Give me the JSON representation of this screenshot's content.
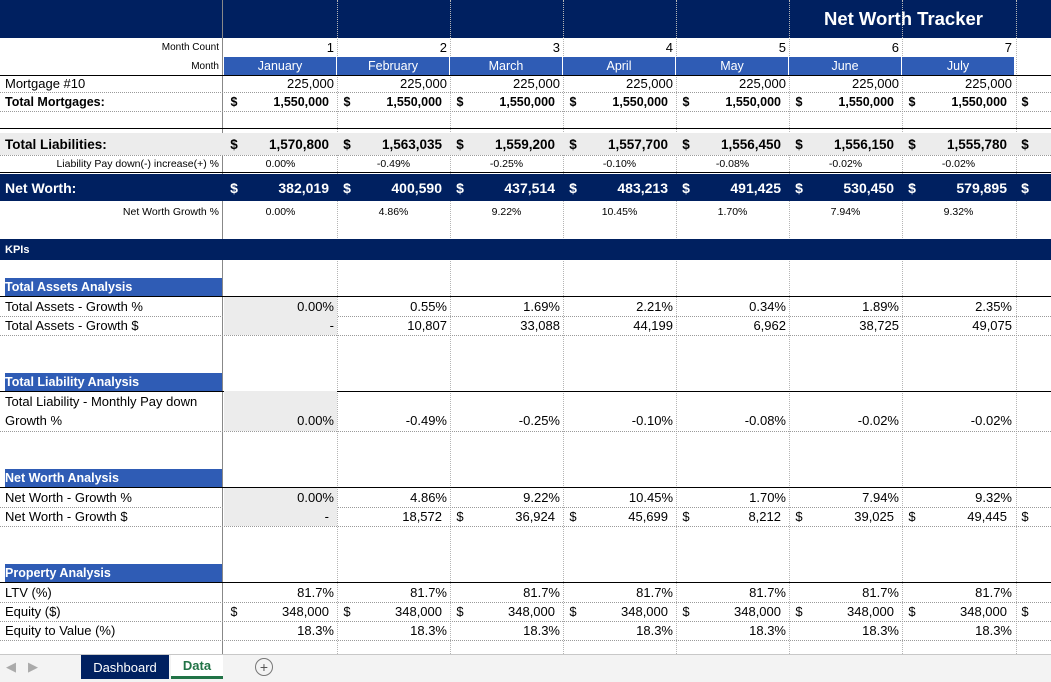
{
  "title": "Net Worth Tracker",
  "months": [
    {
      "count": "1",
      "name": "January",
      "mortgage": "225,000",
      "total_mortgages": "1,550,000",
      "total_liabilities": "1,570,800",
      "liab_paydown": "0.00%",
      "net_worth": "382,019",
      "nw_growth": "0.00%",
      "ta_growth_pct": "0.00%",
      "ta_growth_usd": "-",
      "tl_paydown": "0.00%",
      "nw_growth_pct": "0.00%",
      "nw_growth_usd": "-",
      "ltv": "81.7%",
      "equity": "348,000",
      "etv": "18.3%"
    },
    {
      "count": "2",
      "name": "February",
      "mortgage": "225,000",
      "total_mortgages": "1,550,000",
      "total_liabilities": "1,563,035",
      "liab_paydown": "-0.49%",
      "net_worth": "400,590",
      "nw_growth": "4.86%",
      "ta_growth_pct": "0.55%",
      "ta_growth_usd": "10,807",
      "tl_paydown": "-0.49%",
      "nw_growth_pct": "4.86%",
      "nw_growth_usd": "18,572",
      "ltv": "81.7%",
      "equity": "348,000",
      "etv": "18.3%"
    },
    {
      "count": "3",
      "name": "March",
      "mortgage": "225,000",
      "total_mortgages": "1,550,000",
      "total_liabilities": "1,559,200",
      "liab_paydown": "-0.25%",
      "net_worth": "437,514",
      "nw_growth": "9.22%",
      "ta_growth_pct": "1.69%",
      "ta_growth_usd": "33,088",
      "tl_paydown": "-0.25%",
      "nw_growth_pct": "9.22%",
      "nw_growth_usd": "36,924",
      "ltv": "81.7%",
      "equity": "348,000",
      "etv": "18.3%"
    },
    {
      "count": "4",
      "name": "April",
      "mortgage": "225,000",
      "total_mortgages": "1,550,000",
      "total_liabilities": "1,557,700",
      "liab_paydown": "-0.10%",
      "net_worth": "483,213",
      "nw_growth": "10.45%",
      "ta_growth_pct": "2.21%",
      "ta_growth_usd": "44,199",
      "tl_paydown": "-0.10%",
      "nw_growth_pct": "10.45%",
      "nw_growth_usd": "45,699",
      "ltv": "81.7%",
      "equity": "348,000",
      "etv": "18.3%"
    },
    {
      "count": "5",
      "name": "May",
      "mortgage": "225,000",
      "total_mortgages": "1,550,000",
      "total_liabilities": "1,556,450",
      "liab_paydown": "-0.08%",
      "net_worth": "491,425",
      "nw_growth": "1.70%",
      "ta_growth_pct": "0.34%",
      "ta_growth_usd": "6,962",
      "tl_paydown": "-0.08%",
      "nw_growth_pct": "1.70%",
      "nw_growth_usd": "8,212",
      "ltv": "81.7%",
      "equity": "348,000",
      "etv": "18.3%"
    },
    {
      "count": "6",
      "name": "June",
      "mortgage": "225,000",
      "total_mortgages": "1,550,000",
      "total_liabilities": "1,556,150",
      "liab_paydown": "-0.02%",
      "net_worth": "530,450",
      "nw_growth": "7.94%",
      "ta_growth_pct": "1.89%",
      "ta_growth_usd": "38,725",
      "tl_paydown": "-0.02%",
      "nw_growth_pct": "7.94%",
      "nw_growth_usd": "39,025",
      "ltv": "81.7%",
      "equity": "348,000",
      "etv": "18.3%"
    },
    {
      "count": "7",
      "name": "July",
      "mortgage": "225,000",
      "total_mortgages": "1,550,000",
      "total_liabilities": "1,555,780",
      "liab_paydown": "-0.02%",
      "net_worth": "579,895",
      "nw_growth": "9.32%",
      "ta_growth_pct": "2.35%",
      "ta_growth_usd": "49,075",
      "tl_paydown": "-0.02%",
      "nw_growth_pct": "9.32%",
      "nw_growth_usd": "49,445",
      "ltv": "81.7%",
      "equity": "348,000",
      "etv": "18.3%"
    }
  ],
  "labels": {
    "month_count": "Month Count",
    "month": "Month",
    "mortgage": "Mortgage #10",
    "total_mortgages": "Total Mortgages:",
    "total_liabilities": "Total Liabilities:",
    "liab_paydown": "Liability Pay down(-) increase(+) %",
    "net_worth": "Net Worth:",
    "nw_growth": "Net Worth Growth %",
    "kpis": "KPIs",
    "ta_analysis": "Total Assets Analysis",
    "ta_growth_pct": "Total Assets - Growth %",
    "ta_growth_usd": "Total Assets - Growth $",
    "tl_analysis": "Total Liability Analysis",
    "tl_paydown_1": "Total Liability - Monthly Pay down",
    "tl_paydown_2": "Growth  %",
    "nw_analysis": "Net Worth Analysis",
    "nw_growth_pct": "Net Worth - Growth %",
    "nw_growth_usd": "Net Worth - Growth $",
    "prop_analysis": "Property Analysis",
    "ltv": "LTV (%)",
    "equity": "Equity ($)",
    "etv": "Equity to Value (%)",
    "dollar": "$"
  },
  "tabs": [
    {
      "label": "Dashboard",
      "active": false
    },
    {
      "label": "Data",
      "active": true
    }
  ],
  "colors": {
    "navy": "#002060",
    "section_blue": "#2f5cb5",
    "tab_green": "#217346"
  }
}
